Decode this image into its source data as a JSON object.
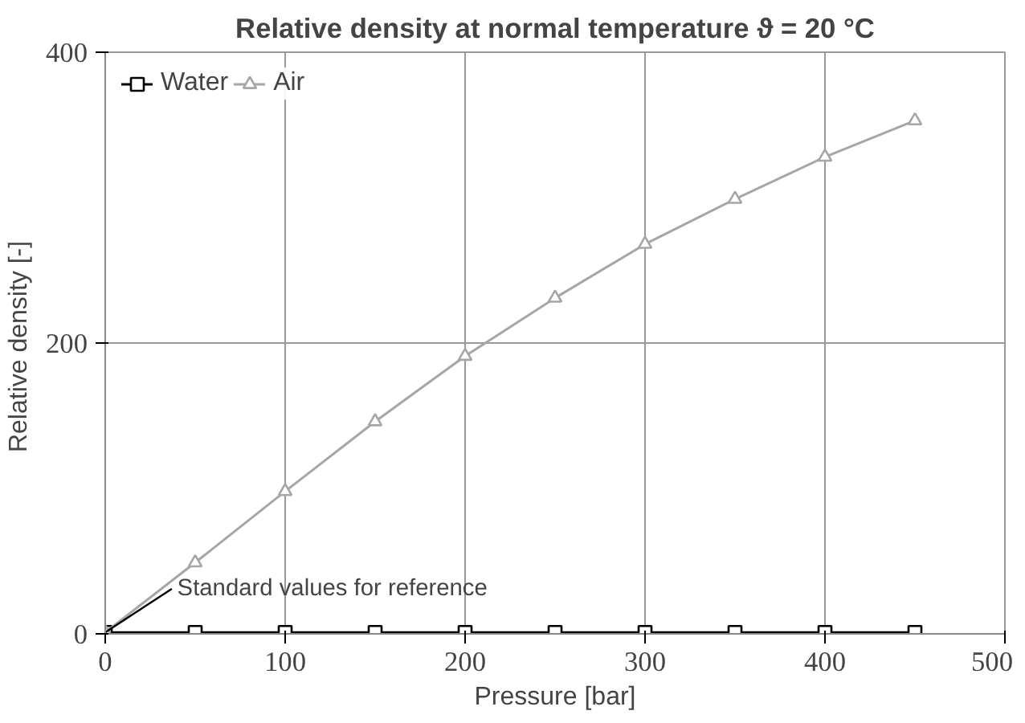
{
  "chart_data": {
    "type": "line",
    "title": "Relative density at normal temperature ϑ = 20 °C",
    "xlabel": "Pressure [bar]",
    "ylabel": "Relative density  [-]",
    "x": [
      0,
      50,
      100,
      150,
      200,
      250,
      300,
      350,
      400,
      450
    ],
    "series": [
      {
        "name": "Water",
        "color": "#000000",
        "marker": "square",
        "values": [
          1,
          1,
          1,
          1,
          1,
          1,
          1,
          1,
          1,
          1
        ]
      },
      {
        "name": "Air",
        "color": "#a6a6a6",
        "marker": "triangle",
        "values": [
          1,
          49,
          98,
          146,
          191,
          231,
          268,
          299,
          328,
          353
        ]
      }
    ],
    "annotations": [
      {
        "text": "Standard values for reference",
        "x": 0,
        "y": 1
      }
    ],
    "xlim": [
      0,
      500
    ],
    "xticks": [
      0,
      100,
      200,
      300,
      400,
      500
    ],
    "ylim": [
      0,
      400
    ],
    "yticks": [
      0,
      200,
      400
    ],
    "grid": true,
    "legend": "top left",
    "line_style": "solid"
  }
}
